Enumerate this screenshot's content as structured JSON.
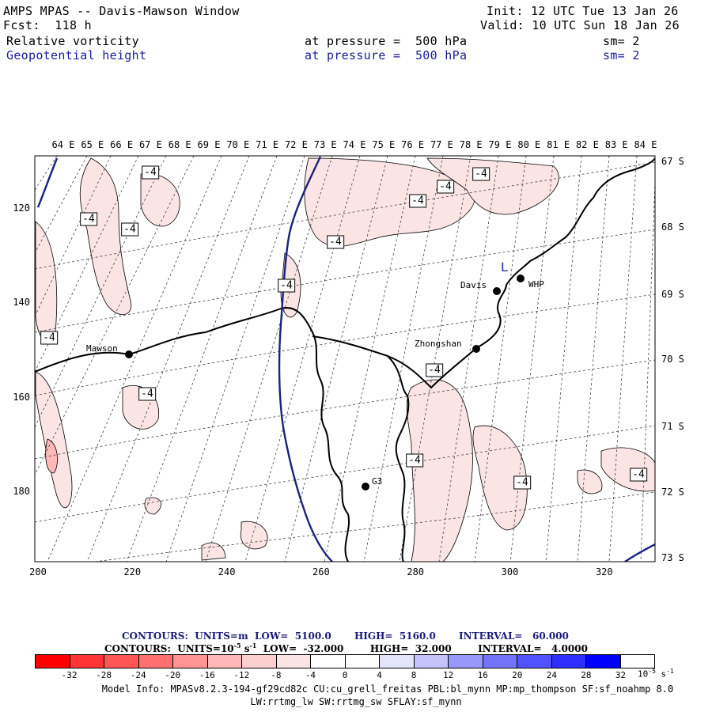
{
  "header": {
    "title": "AMPS MPAS -- Davis-Mawson Window",
    "forecast": "Fcst:  118 h",
    "init": "Init: 12 UTC Tue 13 Jan 26",
    "valid": "Valid: 10 UTC Sun 18 Jan 26",
    "field1": {
      "name": "Relative vorticity",
      "level": "at pressure =  500 hPa",
      "smooth": "sm= 2"
    },
    "field2": {
      "name": "Geopotential height",
      "level": "at pressure =  500 hPa",
      "smooth": "sm= 2"
    }
  },
  "map": {
    "top_longitude_labels": [
      "64 E",
      "65 E",
      "66 E",
      "67 E",
      "68 E",
      "69 E",
      "70 E",
      "71 E",
      "72 E",
      "73 E",
      "74 E",
      "75 E",
      "76 E",
      "77 E",
      "78 E",
      "79 E",
      "80 E",
      "81 E",
      "82 E",
      "83 E",
      "84 E"
    ],
    "right_latitude_labels": [
      "67 S",
      "68 S",
      "69 S",
      "70 S",
      "71 S",
      "72 S",
      "73 S"
    ],
    "left_y_ticks": [
      "120",
      "140",
      "160",
      "180"
    ],
    "bottom_x_ticks": [
      "200",
      "220",
      "240",
      "260",
      "280",
      "300",
      "320"
    ],
    "stations": [
      {
        "id": "mawson",
        "label": "Mawson"
      },
      {
        "id": "davis",
        "label": "Davis"
      },
      {
        "id": "zhongshan",
        "label": "Zhongshan"
      },
      {
        "id": "whp",
        "label": "WHP"
      },
      {
        "id": "g3",
        "label": "G3"
      }
    ],
    "low_marker": "L",
    "contour_label_value": "-4",
    "colors": {
      "vorticity_neg_fill": "#fbe4e4",
      "height_contour": "#1a237e",
      "coast": "#000000"
    }
  },
  "contours": {
    "height": {
      "label": "CONTOURS:  UNITS=m  LOW=  5100.0       HIGH=  5160.0       INTERVAL=   60.000"
    },
    "vorticity": {
      "label_pre": "CONTOURS:  UNITS=10",
      "label_exp": "-5",
      "label_post": " s",
      "label_post_exp": "-1",
      "label_rest": "  LOW=  -32.000        HIGH=  32.000        INTERVAL=   4.0000"
    }
  },
  "colorbar": {
    "labels": [
      "-32",
      "-28",
      "-24",
      "-20",
      "-16",
      "-12",
      "-8",
      "-4",
      "0",
      "4",
      "8",
      "12",
      "16",
      "20",
      "24",
      "28",
      "32"
    ],
    "colors": [
      "#ff0000",
      "#ff3535",
      "#ff5656",
      "#ff7070",
      "#ff9494",
      "#ffb8b8",
      "#fdd0d0",
      "#fbe4e4",
      "#ffffff",
      "#ffffff",
      "#e4e4fb",
      "#c4c4fb",
      "#9898fb",
      "#7474fb",
      "#5252ff",
      "#2e2eff",
      "#0000ff",
      "#ffffff"
    ],
    "units": "10",
    "units_exp": "-5",
    "units_s": " s",
    "units_s_exp": "-1"
  },
  "footer": {
    "line1": "Model Info: MPASv8.2.3-194-gf29cd82c CU:cu_grell_freitas PBL:bl_mynn MP:mp_thompson SF:sf_noahmp 8.0",
    "line2": "LW:rrtmg_lw SW:rrtmg_sw SFLAY:sf_mynn"
  }
}
